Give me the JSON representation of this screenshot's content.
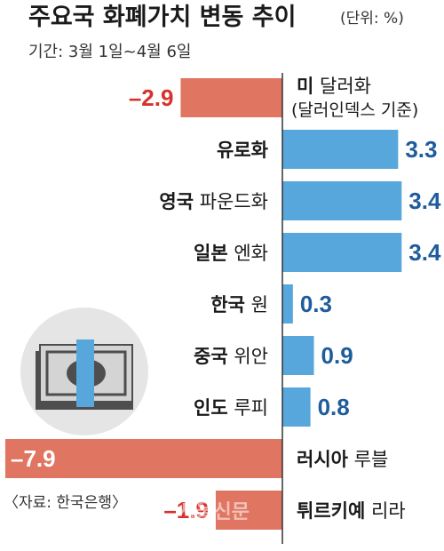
{
  "title": "주요국 화폐가치 변동 추이",
  "unit": "(단위: %)",
  "period": "기간: 3월 1일~4월 6일",
  "source": "〈자료: 한국은행〉",
  "watermark": "서울신문",
  "colors": {
    "positive": "#57a7dc",
    "negative": "#e07561",
    "negative_text": "#d8302a",
    "positive_text": "#1f5c9c",
    "axis": "#333333"
  },
  "chart_data": {
    "type": "bar",
    "orientation": "horizontal",
    "title": "주요국 화폐가치 변동 추이",
    "unit": "%",
    "xlim": [
      -8.2,
      3.6
    ],
    "categories": [
      {
        "bold": "미",
        "rest": "달러화",
        "sub": "(달러인덱스 기준)"
      },
      {
        "bold": "유로화",
        "rest": "",
        "sub": ""
      },
      {
        "bold": "영국",
        "rest": "파운드화",
        "sub": ""
      },
      {
        "bold": "일본",
        "rest": "엔화",
        "sub": ""
      },
      {
        "bold": "한국",
        "rest": "원",
        "sub": ""
      },
      {
        "bold": "중국",
        "rest": "위안",
        "sub": ""
      },
      {
        "bold": "인도",
        "rest": "루피",
        "sub": ""
      },
      {
        "bold": "러시아",
        "rest": "루블",
        "sub": ""
      },
      {
        "bold": "튀르키예",
        "rest": "리라",
        "sub": ""
      }
    ],
    "values": [
      -2.9,
      3.3,
      3.4,
      3.4,
      0.3,
      0.9,
      0.8,
      -7.9,
      -1.9
    ],
    "value_labels": [
      "–2.9",
      "3.3",
      "3.4",
      "3.4",
      "0.3",
      "0.9",
      "0.8",
      "–7.9",
      "–1.9"
    ]
  },
  "icon": "money-banknote-stack-icon"
}
